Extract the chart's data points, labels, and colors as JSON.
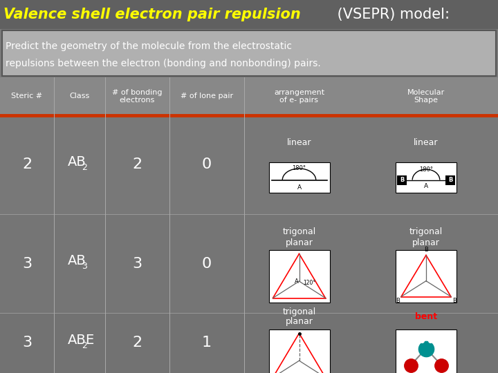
{
  "title_italic": "Valence shell electron pair repulsion",
  "title_normal": " (VSEPR) model:",
  "subtitle_line1": "Predict the geometry of the molecule from the electrostatic",
  "subtitle_line2": "repulsions between the electron (bonding and nonbonding) pairs.",
  "col_headers": [
    "Steric #",
    "Class",
    "# of bonding\nelectrons",
    "# of lone pair",
    "arrangement\nof e- pairs",
    "Molecular\nShape"
  ],
  "rows": [
    {
      "steric": "2",
      "class": "AB",
      "class_sub": "2",
      "class_suffix": "",
      "bonding": "2",
      "lone": "0"
    },
    {
      "steric": "3",
      "class": "AB",
      "class_sub": "3",
      "class_suffix": "",
      "bonding": "3",
      "lone": "0"
    },
    {
      "steric": "3",
      "class": "AB",
      "class_sub": "2",
      "class_suffix": "E",
      "bonding": "2",
      "lone": "1"
    }
  ],
  "bg_color": "#7a7a7a",
  "title_bg": "#606060",
  "subtitle_bg": "#b0b0b0",
  "subtitle_border": "#555555",
  "header_bg": "#888888",
  "separator_color": "#cc3300",
  "text_color": "white",
  "title_color_italic": "#ffff00",
  "title_color_normal": "white",
  "col_divider_color": "#aaaaaa",
  "row_divider_color": "#999999"
}
